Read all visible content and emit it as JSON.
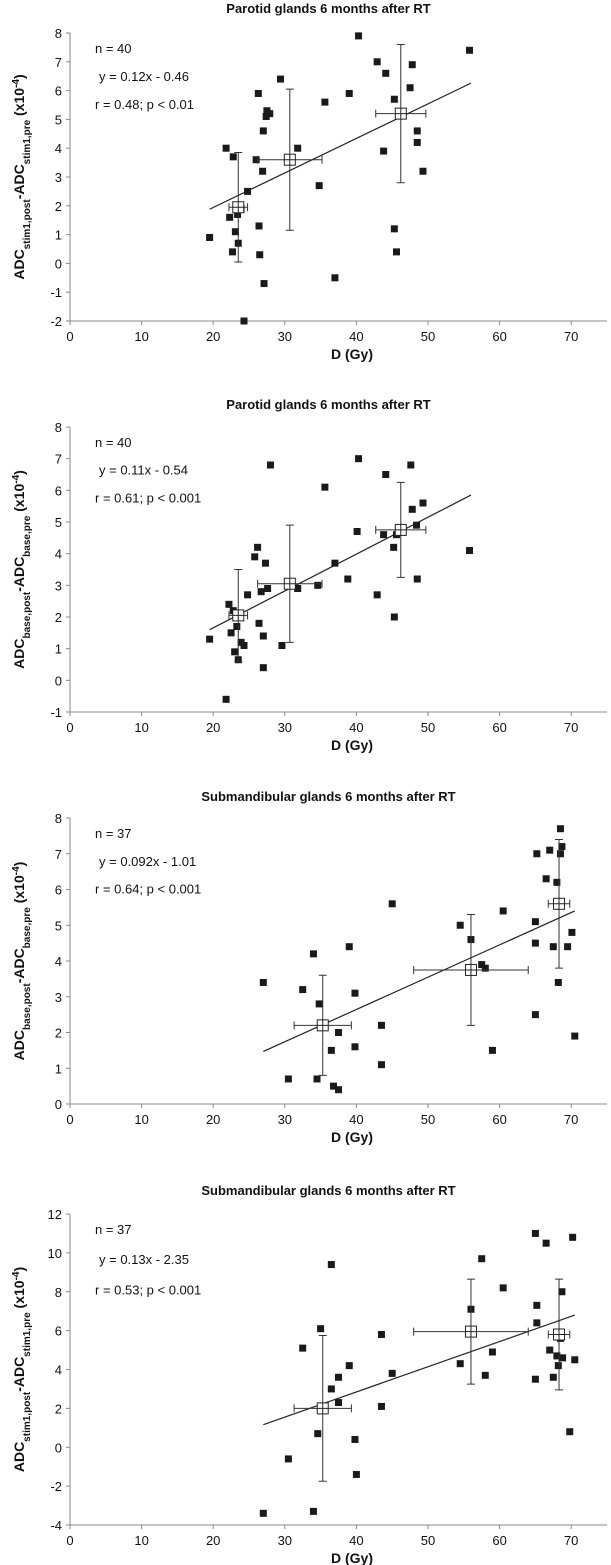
{
  "chart_data": [
    {
      "type": "scatter",
      "title": "Parotid glands 6 months after RT",
      "x_label": "D (Gy)",
      "y_label": [
        "ADC",
        "stim1,post",
        "-ADC",
        "stim1,pre",
        " (x10",
        "-4",
        ")"
      ],
      "annotations": [
        "n = 40",
        "y = 0.12x - 0.46",
        "r = 0.48; p < 0.01"
      ],
      "xlim": [
        0,
        75
      ],
      "xticks": [
        0,
        10,
        20,
        30,
        40,
        50,
        60,
        70
      ],
      "ylim": [
        -2,
        8
      ],
      "yticks": [
        -2,
        -1,
        0,
        1,
        2,
        3,
        4,
        5,
        6,
        7,
        8
      ],
      "color": "#1a1a1a",
      "points": {
        "x": [
          19.5,
          21.8,
          22.3,
          22.7,
          22.8,
          23.1,
          23.4,
          23.5,
          23.9,
          24.3,
          24.8,
          26,
          26.3,
          26.4,
          26.5,
          26.9,
          27,
          27.1,
          27.4,
          27.5,
          27.9,
          29.4,
          31.8,
          34.8,
          35.6,
          37,
          39,
          40.3,
          42.9,
          43.8,
          44.1,
          45.3,
          45.3,
          45.6,
          47.5,
          47.8,
          48.5,
          48.5,
          49.3,
          55.8
        ],
        "y": [
          0.9,
          4.0,
          1.6,
          0.4,
          3.7,
          1.1,
          1.7,
          0.7,
          1.9,
          -2.0,
          2.5,
          3.6,
          5.9,
          1.3,
          0.3,
          3.2,
          4.6,
          -0.7,
          5.1,
          5.3,
          5.2,
          6.4,
          4.0,
          2.7,
          5.6,
          -0.5,
          5.9,
          7.9,
          7.0,
          3.9,
          6.6,
          1.2,
          5.7,
          0.4,
          6.1,
          6.9,
          4.6,
          4.2,
          3.2,
          7.4
        ]
      },
      "means": {
        "x": [
          23.5,
          30.7,
          46.2
        ],
        "y": [
          1.95,
          3.6,
          5.2
        ],
        "xerr": [
          1.3,
          4.5,
          3.5
        ],
        "yerr": [
          1.9,
          2.45,
          2.4
        ]
      },
      "fit": {
        "x": [
          19.5,
          56
        ],
        "y": [
          1.88,
          6.26
        ]
      }
    },
    {
      "type": "scatter",
      "title": "Parotid glands 6 months after RT",
      "x_label": "D (Gy)",
      "y_label": [
        "ADC",
        "base,post",
        "-ADC",
        "base,pre",
        " (x10",
        "-4",
        ")"
      ],
      "annotations": [
        "n = 40",
        "y = 0.11x - 0.54",
        "r = 0.61; p < 0.001"
      ],
      "xlim": [
        0,
        75
      ],
      "xticks": [
        0,
        10,
        20,
        30,
        40,
        50,
        60,
        70
      ],
      "ylim": [
        -1,
        8
      ],
      "yticks": [
        -1,
        0,
        1,
        2,
        3,
        4,
        5,
        6,
        7,
        8
      ],
      "color": "#1a1a1a",
      "points": {
        "x": [
          19.5,
          21.8,
          22.2,
          22.5,
          22.8,
          23,
          23.3,
          23.5,
          23.9,
          24.3,
          24.8,
          25.8,
          26.2,
          26.4,
          26.7,
          27,
          27,
          27.3,
          27.6,
          28,
          29.6,
          31.8,
          34.6,
          35.6,
          37,
          38.8,
          40.1,
          40.3,
          42.9,
          43.8,
          44.1,
          45.2,
          45.3,
          45.6,
          47.6,
          47.8,
          48.4,
          48.5,
          49.3,
          55.8
        ],
        "y": [
          1.3,
          -0.6,
          2.4,
          1.5,
          2.2,
          0.9,
          1.7,
          0.65,
          1.2,
          1.1,
          2.7,
          3.9,
          4.2,
          1.8,
          2.8,
          1.4,
          0.4,
          3.7,
          2.9,
          6.8,
          1.1,
          2.9,
          3.0,
          6.1,
          3.7,
          3.2,
          4.7,
          7.0,
          2.7,
          4.6,
          6.5,
          4.2,
          2.0,
          4.6,
          6.8,
          5.4,
          4.9,
          3.2,
          5.6,
          4.1
        ]
      },
      "means": {
        "x": [
          23.5,
          30.7,
          46.2
        ],
        "y": [
          2.05,
          3.05,
          4.75
        ],
        "xerr": [
          1.3,
          4.5,
          3.5
        ],
        "yerr": [
          1.45,
          1.85,
          1.5
        ]
      },
      "fit": {
        "x": [
          19.5,
          56
        ],
        "y": [
          1.6,
          5.85
        ]
      }
    },
    {
      "type": "scatter",
      "title": "Submandibular glands 6 months after RT",
      "x_label": "D (Gy)",
      "y_label": [
        "ADC",
        "base,post",
        "-ADC",
        "base,pre",
        " (x10",
        "-4",
        ")"
      ],
      "annotations": [
        "n = 37",
        "y = 0.092x - 1.01",
        "r = 0.64; p < 0.001"
      ],
      "xlim": [
        0,
        75
      ],
      "xticks": [
        0,
        10,
        20,
        30,
        40,
        50,
        60,
        70
      ],
      "ylim": [
        0,
        8
      ],
      "yticks": [
        0,
        1,
        2,
        3,
        4,
        5,
        6,
        7,
        8
      ],
      "color": "#1a1a1a",
      "points": {
        "x": [
          27,
          30.5,
          32.5,
          34,
          34.5,
          34.8,
          36.5,
          36.8,
          37.5,
          37.5,
          39,
          39.8,
          39.8,
          43.5,
          43.5,
          45,
          54.5,
          56,
          57.5,
          58,
          59,
          60.5,
          65,
          65,
          65.2,
          65,
          66.5,
          67,
          67.5,
          68,
          68.2,
          68.5,
          68.7,
          68.5,
          69.5,
          70.1,
          70.5
        ],
        "y": [
          3.4,
          0.7,
          3.2,
          4.2,
          0.7,
          2.8,
          1.5,
          0.5,
          0.4,
          2.0,
          4.4,
          1.6,
          3.1,
          1.1,
          2.2,
          5.6,
          5.0,
          4.6,
          3.9,
          3.8,
          1.5,
          5.4,
          2.5,
          5.1,
          7.0,
          4.5,
          6.3,
          7.1,
          4.4,
          6.2,
          3.4,
          7.7,
          7.2,
          7.0,
          4.4,
          4.8,
          1.9
        ]
      },
      "means": {
        "x": [
          35.3,
          56,
          68.3
        ],
        "y": [
          2.2,
          3.75,
          5.6
        ],
        "xerr": [
          4,
          8,
          1.5
        ],
        "yerr": [
          1.4,
          1.55,
          1.8
        ]
      },
      "fit": {
        "x": [
          27,
          70.5
        ],
        "y": [
          1.47,
          5.4
        ]
      }
    },
    {
      "type": "scatter",
      "title": "Submandibular glands 6 months after RT",
      "x_label": "D (Gy)",
      "y_label": [
        "ADC",
        "stim1,post",
        "-ADC",
        "stim1,pre",
        " (x10",
        "-4",
        ")"
      ],
      "annotations": [
        "n = 37",
        "y = 0.13x - 2.35",
        "r = 0.53; p < 0.001"
      ],
      "xlim": [
        0,
        75
      ],
      "xticks": [
        0,
        10,
        20,
        30,
        40,
        50,
        60,
        70
      ],
      "ylim": [
        -4,
        12
      ],
      "yticks": [
        -4,
        -2,
        0,
        2,
        4,
        6,
        8,
        10,
        12
      ],
      "color": "#1a1a1a",
      "points": {
        "x": [
          27,
          30.5,
          32.5,
          34,
          34.6,
          35,
          36.5,
          36.5,
          37.5,
          37.5,
          39,
          39.8,
          40,
          43.5,
          43.5,
          45,
          54.5,
          56,
          57.5,
          58,
          59,
          60.5,
          65,
          65,
          65.2,
          65.2,
          66.5,
          67,
          67.5,
          68,
          68.2,
          68.5,
          68.7,
          68.8,
          69.8,
          70.2,
          70.5
        ],
        "y": [
          -3.4,
          -0.6,
          5.1,
          -3.3,
          0.7,
          6.1,
          9.4,
          3.0,
          3.6,
          2.3,
          4.2,
          0.4,
          -1.4,
          5.8,
          2.1,
          3.8,
          4.3,
          7.1,
          9.7,
          3.7,
          4.9,
          8.2,
          3.5,
          11.0,
          7.3,
          6.4,
          10.5,
          5.0,
          3.6,
          4.7,
          4.2,
          5.6,
          8.0,
          4.6,
          0.8,
          10.8,
          4.5
        ]
      },
      "means": {
        "x": [
          35.3,
          56,
          68.3
        ],
        "y": [
          2.0,
          5.95,
          5.8
        ],
        "xerr": [
          4,
          8,
          1.5
        ],
        "yerr": [
          3.75,
          2.7,
          2.85
        ]
      },
      "fit": {
        "x": [
          27,
          70.5
        ],
        "y": [
          1.16,
          6.8
        ]
      }
    }
  ]
}
